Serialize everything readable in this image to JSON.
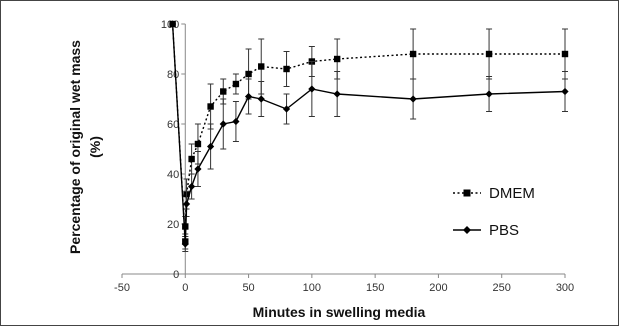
{
  "chart_data": {
    "type": "line",
    "xlabel": "Minutes in swelling media",
    "ylabel": "Percentage of original wet mass (%)",
    "ylabel_lines": [
      "Percentage of original wet mass",
      "(%)"
    ],
    "xlim": [
      -50,
      300
    ],
    "ylim": [
      0,
      100
    ],
    "x_ticks": [
      -50,
      0,
      50,
      100,
      150,
      200,
      250,
      300
    ],
    "y_ticks": [
      0,
      20,
      40,
      60,
      80,
      100
    ],
    "grid": false,
    "legend_position": "right",
    "series": [
      {
        "name": "DMEM",
        "line_style": "dotted",
        "marker": "square",
        "color": "#000000",
        "points": [
          {
            "x": -10,
            "y": 100,
            "err": 0
          },
          {
            "x": 0,
            "y": 13,
            "err": 3
          },
          {
            "x": 0,
            "y": 19,
            "err": 4
          },
          {
            "x": 1,
            "y": 32,
            "err": 6
          },
          {
            "x": 5,
            "y": 46,
            "err": 6
          },
          {
            "x": 10,
            "y": 52,
            "err": 8
          },
          {
            "x": 20,
            "y": 67,
            "err": 9
          },
          {
            "x": 30,
            "y": 73,
            "err": 5
          },
          {
            "x": 40,
            "y": 76,
            "err": 4
          },
          {
            "x": 50,
            "y": 80,
            "err": 10
          },
          {
            "x": 60,
            "y": 83,
            "err": 11
          },
          {
            "x": 80,
            "y": 82,
            "err": 7
          },
          {
            "x": 100,
            "y": 85,
            "err": 6
          },
          {
            "x": 120,
            "y": 86,
            "err": 8
          },
          {
            "x": 180,
            "y": 88,
            "err": 10
          },
          {
            "x": 240,
            "y": 88,
            "err": 10
          },
          {
            "x": 300,
            "y": 88,
            "err": 10
          }
        ]
      },
      {
        "name": "PBS",
        "line_style": "solid",
        "marker": "diamond",
        "color": "#000000",
        "points": [
          {
            "x": -10,
            "y": 100,
            "err": 0
          },
          {
            "x": 0,
            "y": 12,
            "err": 3
          },
          {
            "x": 1,
            "y": 28,
            "err": 5
          },
          {
            "x": 5,
            "y": 35,
            "err": 5
          },
          {
            "x": 10,
            "y": 42,
            "err": 7
          },
          {
            "x": 20,
            "y": 51,
            "err": 9
          },
          {
            "x": 30,
            "y": 60,
            "err": 10
          },
          {
            "x": 40,
            "y": 61,
            "err": 8
          },
          {
            "x": 50,
            "y": 71,
            "err": 7
          },
          {
            "x": 60,
            "y": 70,
            "err": 7
          },
          {
            "x": 80,
            "y": 66,
            "err": 6
          },
          {
            "x": 100,
            "y": 74,
            "err": 11
          },
          {
            "x": 120,
            "y": 72,
            "err": 9
          },
          {
            "x": 180,
            "y": 70,
            "err": 8
          },
          {
            "x": 240,
            "y": 72,
            "err": 7
          },
          {
            "x": 300,
            "y": 73,
            "err": 8
          }
        ]
      }
    ]
  }
}
